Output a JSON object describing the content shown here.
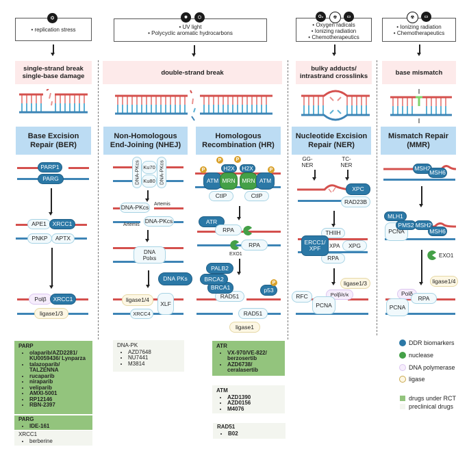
{
  "colors": {
    "ddr_biomarker": "#2b78a6",
    "nuclease": "#44a047",
    "dna_polymerase": "#f6edfc",
    "ligase": "#fdf7e4",
    "rct": "#93c47d",
    "preclinical": "#f3f5ef",
    "strand_top": "#d4504d",
    "strand_bottom": "#3d84b5",
    "damage_bg": "#fdeaea",
    "pathway_bg": "#bcdcf3"
  },
  "causes": {
    "ber": {
      "icons": [
        {
          "name": "dna-replication-icon",
          "glyph": "⌬"
        }
      ],
      "items": [
        "replication stress"
      ]
    },
    "dsb": {
      "icons": [
        {
          "name": "uv-sun-icon",
          "glyph": "✹"
        },
        {
          "name": "hydrocarbon-molecule-icon",
          "glyph": "⬡"
        }
      ],
      "items": [
        "UV light",
        "Polycyclic aromatic hydrocarbons"
      ]
    },
    "ner": {
      "icons": [
        {
          "name": "oxygen-radical-icon",
          "glyph": "O₂"
        },
        {
          "name": "radiation-icon",
          "glyph": "☢"
        },
        {
          "name": "pill-icon",
          "glyph": "▭"
        }
      ],
      "items": [
        "Oxygen radicals",
        "Ionizing radiation",
        "Chemotherapeutics"
      ]
    },
    "mmr": {
      "icons": [
        {
          "name": "radiation-icon",
          "glyph": "☢"
        },
        {
          "name": "pill-icon",
          "glyph": "▭"
        }
      ],
      "items": [
        "Ionizing radiation",
        "Chemotherapeutics"
      ]
    }
  },
  "damage": {
    "ssb": [
      "single-strand break",
      "single-base damage"
    ],
    "dsb": [
      "double-strand break"
    ],
    "bulky": [
      "bulky adducts/",
      "intrastrand crosslinks"
    ],
    "mismatch": [
      "base mismatch"
    ]
  },
  "pathways": {
    "ber": [
      "Base Excision",
      "Repair (BER)"
    ],
    "nhej": [
      "Non-Homologous",
      "End-Joining (NHEJ)"
    ],
    "hr": [
      "Homologous",
      "Recombination (HR)"
    ],
    "ner": [
      "Nucleotide Excision",
      "Repair (NER)"
    ],
    "mmr": [
      "Mismatch Repair",
      "(MMR)"
    ]
  },
  "ber": [
    "PARP1",
    "PARG",
    "APE1",
    "XRCC1",
    "PNKP",
    "APTX",
    "Polβ",
    "XRCC1",
    "ligase1/3"
  ],
  "nhej": [
    "DNA-PKcs",
    "Ku70",
    "Ku80",
    "DNA-PKcs",
    "DNA-PKcs",
    "Artemis",
    "DNA-PKcs",
    "Artemis",
    "DNA\nPolxs",
    "DNA PKs",
    "ligase1/4",
    "XLF",
    "XRCC4"
  ],
  "hr": [
    "P",
    "H2X",
    "ATM",
    "MRN",
    "P",
    "H2X",
    "MRN",
    "ATM",
    "P",
    "CtIP",
    "CtIP",
    "ATR",
    "RPA",
    "RPA",
    "EXO1",
    "PALB2",
    "BRCA2",
    "BRCA1",
    "RAD51",
    "p53",
    "P",
    "RAD51",
    "ligase1",
    "P"
  ],
  "ner": [
    "GG-\nNER",
    "TC-\nNER",
    "XPC",
    "RAD23B",
    "THIIH",
    "ERCC1/\nXPF",
    "XPA",
    "XPG",
    "RPA",
    "ligase1/3",
    "Polβ/ε/κ",
    "RFC",
    "PCNA"
  ],
  "mmr": [
    "MSH2",
    "MSH6",
    "MLH1",
    "PMS2",
    "MSH2",
    "MSH6",
    "PCNA",
    "EXO1",
    "ligase1/4",
    "Polδ",
    "RPA",
    "PCNA"
  ],
  "drugs": {
    "parp": {
      "target": "PARP",
      "items": [
        "olaparib/AZD2281/ KU0059436/ Lynparza",
        "talazoparib/ TALZENNA",
        "rucaparib",
        "niraparib",
        "veliparib",
        "AMXI-5001",
        "RP12146",
        "RBN-2397"
      ],
      "status": "rct"
    },
    "parg": {
      "target": "PARG",
      "items": [
        "IDE-161"
      ],
      "status": "rct"
    },
    "xrcc1": {
      "target": "XRCC1",
      "items": [
        "berberine"
      ],
      "status": "preclinical"
    },
    "dnapk": {
      "target": "DNA-PK",
      "items": [
        "AZD7648",
        "NU7441",
        "M3814"
      ],
      "status": "preclinical"
    },
    "atr": {
      "target": "ATR",
      "items": [
        "VX-970/VE-822/ berzosertib",
        "AZD6738/ ceralasertib"
      ],
      "status": "rct"
    },
    "atm": {
      "target": "ATM",
      "items": [
        "AZD1390",
        "AZD0156",
        "M4076"
      ],
      "status": "preclinical"
    },
    "rad51": {
      "target": "RAD51",
      "items": [
        "B02"
      ],
      "status": "preclinical"
    }
  },
  "legend": [
    "DDR biomarkers",
    "nuclease",
    "DNA polymerase",
    "ligase",
    "drugs under RCT",
    "preclinical drugs"
  ]
}
